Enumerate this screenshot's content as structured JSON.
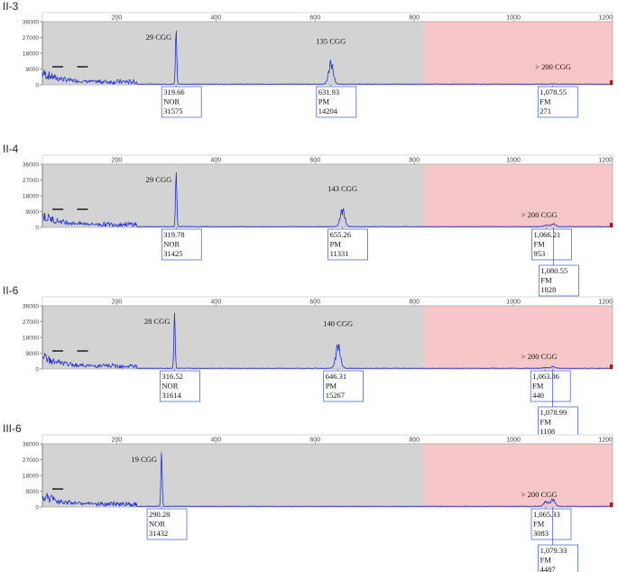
{
  "chart_data": [
    {
      "type": "line",
      "title": "II-3",
      "xlim": [
        50,
        1200
      ],
      "ylim": [
        0,
        36000
      ],
      "x_ticks": [
        200,
        400,
        600,
        800,
        1000,
        1200
      ],
      "y_ticks": [
        0,
        9000,
        18000,
        27000,
        36000
      ],
      "peaks": [
        {
          "x": 319.66,
          "height": 31575,
          "label": "29 CGG",
          "call": "NOR",
          "box": [
            "319.66",
            "NOR",
            "31575"
          ]
        },
        {
          "x": 631.93,
          "height": 14204,
          "label": "135 CGG",
          "call": "PM",
          "box": [
            "631.93",
            "PM",
            "14204"
          ]
        },
        {
          "x": 1078.55,
          "height": 271,
          "label": "",
          "call": "FM",
          "box": [
            "1,078.55",
            "FM",
            "271"
          ]
        }
      ],
      "range_label": "> 200 CGG",
      "dash_count": 2
    },
    {
      "type": "line",
      "title": "II-4",
      "xlim": [
        50,
        1200
      ],
      "ylim": [
        0,
        36000
      ],
      "x_ticks": [
        200,
        400,
        600,
        800,
        1000,
        1200
      ],
      "y_ticks": [
        0,
        9000,
        18000,
        27000,
        36000
      ],
      "peaks": [
        {
          "x": 319.78,
          "height": 31425,
          "label": "29 CGG",
          "call": "NOR",
          "box": [
            "319.78",
            "NOR",
            "31425"
          ]
        },
        {
          "x": 655.26,
          "height": 11331,
          "label": "143 CGG",
          "call": "PM",
          "box": [
            "655.26",
            "PM",
            "11331"
          ]
        },
        {
          "x": 1066.21,
          "height": 953,
          "label": "",
          "call": "FM",
          "box": [
            "1,066.21",
            "FM",
            "953"
          ]
        },
        {
          "x": 1080.55,
          "height": 1828,
          "label": "",
          "call": "FM",
          "box": [
            "1,080.55",
            "FM",
            "1828"
          ]
        }
      ],
      "range_label": "> 200 CGG",
      "dash_count": 2
    },
    {
      "type": "line",
      "title": "II-6",
      "xlim": [
        50,
        1200
      ],
      "ylim": [
        0,
        36000
      ],
      "x_ticks": [
        200,
        400,
        600,
        800,
        1000,
        1200
      ],
      "y_ticks": [
        0,
        9000,
        18000,
        27000,
        36000
      ],
      "peaks": [
        {
          "x": 316.52,
          "height": 31614,
          "label": "28 CGG",
          "call": "NOR",
          "box": [
            "316.52",
            "NOR",
            "31614"
          ]
        },
        {
          "x": 646.31,
          "height": 15267,
          "label": "140 CGG",
          "call": "PM",
          "box": [
            "646.31",
            "PM",
            "15267"
          ]
        },
        {
          "x": 1063.86,
          "height": 440,
          "label": "",
          "call": "FM",
          "box": [
            "1,063.86",
            "FM",
            "440"
          ]
        },
        {
          "x": 1078.99,
          "height": 1108,
          "label": "",
          "call": "FM",
          "box": [
            "1,078.99",
            "FM",
            "1108"
          ]
        }
      ],
      "range_label": "> 200 CGG",
      "dash_count": 2
    },
    {
      "type": "line",
      "title": "III-6",
      "xlim": [
        50,
        1200
      ],
      "ylim": [
        0,
        36000
      ],
      "x_ticks": [
        200,
        400,
        600,
        800,
        1000,
        1200
      ],
      "y_ticks": [
        0,
        9000,
        18000,
        27000,
        36000
      ],
      "peaks": [
        {
          "x": 290.28,
          "height": 31432,
          "label": "19 CGG",
          "call": "NOR",
          "box": [
            "290.28",
            "NOR",
            "31432"
          ]
        },
        {
          "x": 1065.33,
          "height": 3083,
          "label": "",
          "call": "FM",
          "box": [
            "1,065.33",
            "FM",
            "3083"
          ]
        },
        {
          "x": 1079.33,
          "height": 4487,
          "label": "",
          "call": "FM",
          "box": [
            "1,079.33",
            "FM",
            "4487"
          ]
        }
      ],
      "range_label": "> 200 CGG",
      "dash_count": 1
    }
  ],
  "colors": {
    "trace": "#1f2fd6",
    "normal_region": "#d3d3d3",
    "full_mutation_region": "#f7c6c6",
    "box_border": "#3a55c8"
  }
}
